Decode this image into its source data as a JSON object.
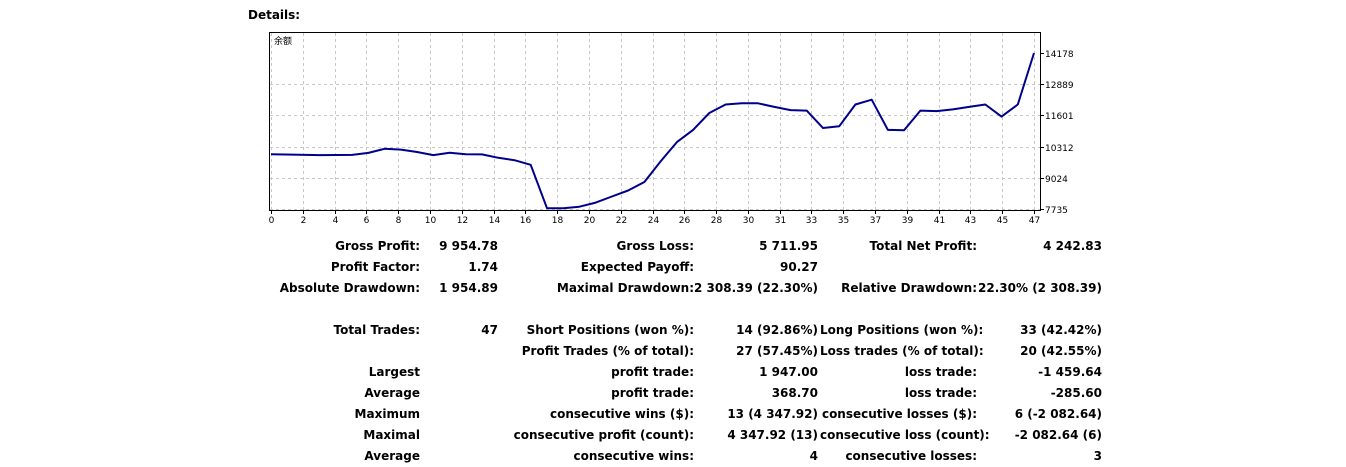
{
  "heading": "Details:",
  "chart_data": {
    "type": "line",
    "title": "余额",
    "x_ticks": [
      "0",
      "2",
      "4",
      "6",
      "8",
      "10",
      "12",
      "14",
      "16",
      "18",
      "20",
      "22",
      "24",
      "26",
      "28",
      "30",
      "31",
      "33",
      "35",
      "37",
      "39",
      "41",
      "43",
      "45",
      "47"
    ],
    "y_ticks": [
      "14178",
      "12889",
      "11601",
      "10312",
      "9024",
      "7735"
    ],
    "ylim": [
      7735,
      14178
    ],
    "xlim": [
      0,
      47
    ],
    "series": [
      {
        "color": "#00008b",
        "points": [
          [
            0,
            10000
          ],
          [
            1.3,
            9980
          ],
          [
            3,
            9960
          ],
          [
            5,
            9970
          ],
          [
            6,
            10050
          ],
          [
            7,
            10220
          ],
          [
            8,
            10190
          ],
          [
            9,
            10090
          ],
          [
            10,
            9960
          ],
          [
            11,
            10060
          ],
          [
            12,
            10000
          ],
          [
            13,
            9990
          ],
          [
            14,
            9850
          ],
          [
            15,
            9750
          ],
          [
            16,
            9560
          ],
          [
            17,
            7770
          ],
          [
            18,
            7770
          ],
          [
            19,
            7830
          ],
          [
            20,
            8000
          ],
          [
            21,
            8250
          ],
          [
            22,
            8500
          ],
          [
            23,
            8850
          ],
          [
            24,
            9700
          ],
          [
            25,
            10500
          ],
          [
            26,
            11000
          ],
          [
            27,
            11700
          ],
          [
            28,
            12050
          ],
          [
            29,
            12100
          ],
          [
            30,
            12100
          ],
          [
            31,
            11950
          ],
          [
            32,
            11820
          ],
          [
            33,
            11800
          ],
          [
            34,
            11080
          ],
          [
            35,
            11150
          ],
          [
            36,
            12050
          ],
          [
            37,
            12250
          ],
          [
            38,
            11000
          ],
          [
            39,
            10990
          ],
          [
            40,
            11800
          ],
          [
            41,
            11780
          ],
          [
            42,
            11850
          ],
          [
            43,
            11950
          ],
          [
            44,
            12050
          ],
          [
            45,
            11550
          ],
          [
            46,
            12050
          ],
          [
            47,
            14178
          ]
        ]
      }
    ],
    "grid": true
  },
  "stats": {
    "gross_profit": {
      "label": "Gross Profit:",
      "value": "9 954.78"
    },
    "gross_loss": {
      "label": "Gross Loss:",
      "value": "5 711.95"
    },
    "total_net_profit": {
      "label": "Total Net Profit:",
      "value": "4 242.83"
    },
    "profit_factor": {
      "label": "Profit Factor:",
      "value": "1.74"
    },
    "expected_payoff": {
      "label": "Expected Payoff:",
      "value": "90.27"
    },
    "absolute_drawdown": {
      "label": "Absolute Drawdown:",
      "value": "1 954.89"
    },
    "maximal_drawdown": {
      "label": "Maximal Drawdown:",
      "value": "2 308.39 (22.30%)"
    },
    "relative_drawdown": {
      "label": "Relative Drawdown:",
      "value": "22.30% (2 308.39)"
    },
    "total_trades": {
      "label": "Total Trades:",
      "value": "47"
    },
    "short_positions": {
      "label": "Short Positions (won %):",
      "value": "14 (92.86%)"
    },
    "long_positions": {
      "label": "Long Positions (won %):",
      "value": "33 (42.42%)"
    },
    "profit_trades": {
      "label": "Profit Trades (% of total):",
      "value": "27 (57.45%)"
    },
    "loss_trades": {
      "label": "Loss trades (% of total):",
      "value": "20 (42.55%)"
    },
    "largest": {
      "label": "Largest",
      "profit_label": "profit trade:",
      "profit_value": "1 947.00",
      "loss_label": "loss trade:",
      "loss_value": "-1 459.64"
    },
    "average": {
      "label": "Average",
      "profit_label": "profit trade:",
      "profit_value": "368.70",
      "loss_label": "loss trade:",
      "loss_value": "-285.60"
    },
    "maximum": {
      "label": "Maximum",
      "wins_label": "consecutive wins ($):",
      "wins_value": "13 (4 347.92)",
      "losses_label": "consecutive losses ($):",
      "losses_value": "6 (-2 082.64)"
    },
    "maximal": {
      "label": "Maximal",
      "profit_label": "consecutive profit (count):",
      "profit_value": "4 347.92 (13)",
      "loss_label": "consecutive loss (count):",
      "loss_value": "-2 082.64 (6)"
    },
    "average_consec": {
      "label": "Average",
      "wins_label": "consecutive wins:",
      "wins_value": "4",
      "losses_label": "consecutive losses:",
      "losses_value": "3"
    }
  }
}
